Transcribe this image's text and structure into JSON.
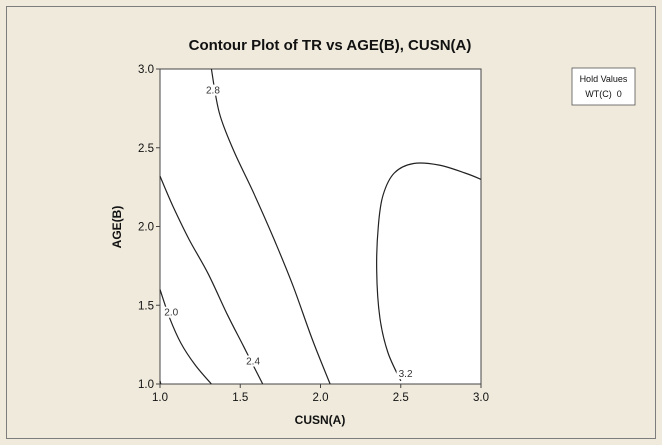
{
  "chart_data": {
    "type": "contour",
    "title": "Contour Plot of TR vs AGE(B), CUSN(A)",
    "xlabel": "CUSN(A)",
    "ylabel": "AGE(B)",
    "xlim": [
      1.0,
      3.0
    ],
    "ylim": [
      1.0,
      3.0
    ],
    "xticks": [
      "1.0",
      "1.5",
      "2.0",
      "2.5",
      "3.0"
    ],
    "yticks": [
      "1.0",
      "1.5",
      "2.0",
      "2.5",
      "3.0"
    ],
    "hold_values": {
      "title": "Hold Values",
      "entry": "WT(C)  0"
    },
    "contours": [
      {
        "level": "2.0",
        "points": [
          [
            1.0,
            1.02
          ],
          [
            1.005,
            1.0
          ]
        ],
        "label_at": [
          1.07,
          1.44
        ]
      },
      {
        "level": "2.0",
        "points": [
          [
            1.0,
            1.6
          ],
          [
            1.06,
            1.42
          ],
          [
            1.13,
            1.26
          ],
          [
            1.22,
            1.12
          ],
          [
            1.32,
            1.0
          ]
        ],
        "label_at": null
      },
      {
        "level": "2.4",
        "points": [
          [
            1.0,
            2.32
          ],
          [
            1.08,
            2.13
          ],
          [
            1.18,
            1.92
          ],
          [
            1.3,
            1.7
          ],
          [
            1.42,
            1.44
          ],
          [
            1.52,
            1.24
          ],
          [
            1.64,
            1.0
          ]
        ],
        "label_at": [
          1.58,
          1.13
        ]
      },
      {
        "level": "2.8",
        "points": [
          [
            1.32,
            3.0
          ],
          [
            1.37,
            2.72
          ],
          [
            1.46,
            2.48
          ],
          [
            1.58,
            2.22
          ],
          [
            1.71,
            1.92
          ],
          [
            1.83,
            1.62
          ],
          [
            1.95,
            1.28
          ],
          [
            2.06,
            1.0
          ]
        ],
        "label_at": [
          1.33,
          2.85
        ]
      },
      {
        "level": "3.2",
        "points": [
          [
            2.5,
            1.02
          ],
          [
            2.42,
            1.2
          ],
          [
            2.37,
            1.42
          ],
          [
            2.35,
            1.72
          ],
          [
            2.36,
            2.0
          ],
          [
            2.39,
            2.2
          ],
          [
            2.46,
            2.34
          ],
          [
            2.58,
            2.4
          ],
          [
            2.74,
            2.39
          ],
          [
            2.9,
            2.34
          ],
          [
            3.0,
            2.3
          ]
        ],
        "label_at": [
          2.53,
          1.05
        ]
      }
    ]
  }
}
